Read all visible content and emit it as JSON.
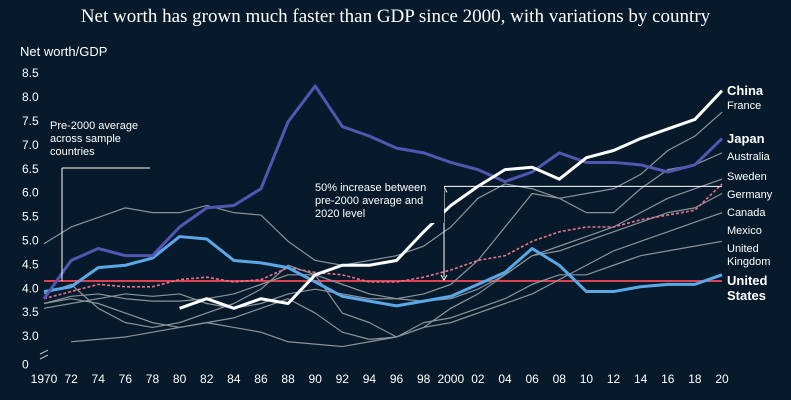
{
  "chart_data": {
    "type": "line",
    "title": "Net worth has grown much faster than GDP since 2000, with variations by country",
    "y_label": "Net worth/GDP",
    "x": [
      1970,
      1972,
      1974,
      1976,
      1978,
      1980,
      1982,
      1984,
      1986,
      1988,
      1990,
      1992,
      1994,
      1996,
      1998,
      2000,
      2002,
      2004,
      2006,
      2008,
      2010,
      2012,
      2014,
      2016,
      2018,
      2020
    ],
    "xlim": [
      1970,
      2020
    ],
    "xticks": [
      1970,
      {
        "value": 1972,
        "label": "72"
      },
      {
        "value": 1974,
        "label": "74"
      },
      {
        "value": 1976,
        "label": "76"
      },
      {
        "value": 1978,
        "label": "78"
      },
      {
        "value": 1980,
        "label": "80"
      },
      {
        "value": 1982,
        "label": "82"
      },
      {
        "value": 1984,
        "label": "84"
      },
      {
        "value": 1986,
        "label": "86"
      },
      {
        "value": 1988,
        "label": "88"
      },
      {
        "value": 1990,
        "label": "90"
      },
      {
        "value": 1992,
        "label": "92"
      },
      {
        "value": 1994,
        "label": "94"
      },
      {
        "value": 1996,
        "label": "96"
      },
      {
        "value": 1998,
        "label": "98"
      },
      2000,
      {
        "value": 2002,
        "label": "02"
      },
      {
        "value": 2004,
        "label": "04"
      },
      {
        "value": 2006,
        "label": "06"
      },
      {
        "value": 2008,
        "label": "08"
      },
      {
        "value": 2010,
        "label": "10"
      },
      {
        "value": 2012,
        "label": "12"
      },
      {
        "value": 2014,
        "label": "14"
      },
      {
        "value": 2016,
        "label": "16"
      },
      {
        "value": 2018,
        "label": "18"
      },
      {
        "value": 2020,
        "label": "20"
      }
    ],
    "ylim": [
      2.6,
      8.6
    ],
    "yticks": [
      0,
      {
        "value": 3,
        "label": "3.0"
      },
      3.5,
      {
        "value": 4,
        "label": "4.0"
      },
      4.5,
      {
        "value": 5,
        "label": "5.0"
      },
      5.5,
      {
        "value": 6,
        "label": "6.0"
      },
      6.5,
      {
        "value": 7,
        "label": "7.0"
      },
      7.5,
      {
        "value": 8,
        "label": "8.0"
      },
      8.5
    ],
    "axis_break": true,
    "series": [
      {
        "name": "France",
        "color": "#8c949b",
        "values": [
          3.6,
          3.7,
          3.8,
          3.9,
          3.85,
          3.9,
          3.7,
          3.6,
          3.7,
          3.9,
          4.0,
          3.9,
          3.8,
          3.8,
          3.9,
          4.1,
          4.6,
          5.3,
          6.0,
          5.9,
          6.0,
          6.1,
          6.4,
          6.9,
          7.2,
          7.7
        ]
      },
      {
        "name": "Australia",
        "color": "#8c949b",
        "values": [
          4.95,
          5.3,
          5.5,
          5.7,
          5.6,
          5.6,
          5.75,
          5.6,
          5.55,
          5.0,
          4.6,
          4.5,
          4.6,
          4.7,
          4.9,
          5.3,
          5.9,
          6.2,
          6.1,
          5.9,
          5.6,
          5.6,
          6.1,
          6.5,
          6.6,
          6.85
        ]
      },
      {
        "name": "Sweden",
        "color": "#8c949b",
        "values": [
          3.7,
          3.8,
          3.7,
          3.5,
          3.3,
          3.2,
          3.3,
          3.4,
          3.6,
          3.8,
          3.5,
          3.1,
          2.95,
          3.0,
          3.2,
          3.6,
          3.9,
          4.3,
          4.7,
          4.9,
          5.1,
          5.3,
          5.6,
          5.9,
          6.1,
          6.3
        ]
      },
      {
        "name": "Canada",
        "color": "#8c949b",
        "values": [
          3.7,
          3.85,
          3.9,
          3.8,
          3.75,
          3.75,
          3.8,
          3.9,
          4.1,
          4.3,
          4.3,
          4.1,
          3.9,
          3.8,
          3.75,
          3.8,
          4.0,
          4.3,
          4.7,
          4.8,
          5.0,
          5.2,
          5.4,
          5.6,
          5.7,
          6.0
        ]
      },
      {
        "name": "Mexico",
        "color": "#8c949b",
        "values": [
          null,
          2.9,
          2.95,
          3.0,
          3.1,
          3.2,
          3.3,
          3.2,
          3.1,
          2.9,
          2.85,
          2.8,
          2.9,
          3.0,
          3.2,
          3.3,
          3.5,
          3.7,
          3.9,
          4.2,
          4.5,
          4.8,
          5.0,
          5.2,
          5.4,
          5.6
        ]
      },
      {
        "name": "United Kingdom",
        "color": "#8c949b",
        "values": [
          3.9,
          4.1,
          3.6,
          3.3,
          3.2,
          3.3,
          3.5,
          3.7,
          4.0,
          4.5,
          4.3,
          3.5,
          3.3,
          3.0,
          3.3,
          3.4,
          3.6,
          3.8,
          4.1,
          4.3,
          4.3,
          4.5,
          4.7,
          4.8,
          4.9,
          5.0
        ]
      },
      {
        "name": "Germany",
        "color": "#e8738a",
        "dashed": true,
        "values": [
          3.8,
          3.95,
          4.1,
          4.05,
          4.05,
          4.2,
          4.25,
          4.15,
          4.2,
          4.45,
          4.35,
          4.3,
          4.15,
          4.15,
          4.25,
          4.4,
          4.6,
          4.7,
          5.0,
          5.2,
          5.3,
          5.3,
          5.45,
          5.55,
          5.65,
          6.2
        ]
      },
      {
        "name": "United States",
        "color": "#5aa8e6",
        "highlight": true,
        "values": [
          3.95,
          4.05,
          4.45,
          4.5,
          4.65,
          5.1,
          5.05,
          4.6,
          4.55,
          4.45,
          4.15,
          3.85,
          3.75,
          3.65,
          3.75,
          3.85,
          4.1,
          4.35,
          4.85,
          4.5,
          3.95,
          3.95,
          4.05,
          4.1,
          4.1,
          4.3
        ]
      },
      {
        "name": "Japan",
        "color": "#5157b0",
        "highlight": true,
        "values": [
          3.8,
          4.6,
          4.85,
          4.7,
          4.7,
          5.3,
          5.7,
          5.75,
          6.1,
          7.5,
          8.25,
          7.4,
          7.2,
          6.95,
          6.85,
          6.65,
          6.5,
          6.25,
          6.45,
          6.85,
          6.65,
          6.65,
          6.6,
          6.45,
          6.6,
          7.15
        ]
      },
      {
        "name": "China",
        "color": "#ffffff",
        "highlight": true,
        "values": [
          null,
          null,
          null,
          null,
          null,
          3.6,
          3.8,
          3.6,
          3.8,
          3.7,
          4.3,
          4.5,
          4.5,
          4.6,
          5.2,
          5.75,
          6.15,
          6.5,
          6.55,
          6.3,
          6.75,
          6.9,
          7.15,
          7.35,
          7.55,
          8.15
        ]
      }
    ],
    "reference_line": {
      "value": 4.17,
      "color": "#e0414e",
      "label": "Pre-2000 average across sample countries"
    },
    "increase_annotation": {
      "x": 1999.5,
      "value": 6.15,
      "label": "50% increase between pre-2000 average and 2020 level"
    }
  }
}
